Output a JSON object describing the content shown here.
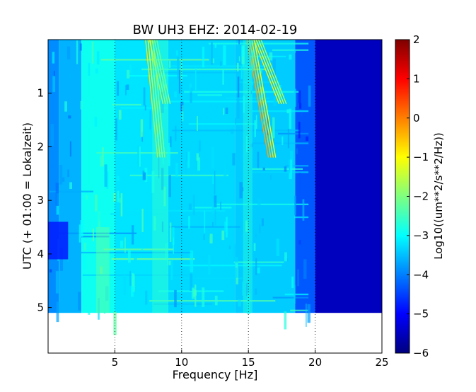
{
  "chart_data": {
    "type": "heatmap",
    "title": "BW UH3 EHZ: 2014-02-19",
    "xlabel": "Frequency [Hz]",
    "ylabel": "UTC (+ 01:00 = Lokalzeit)",
    "xlim": [
      0,
      25
    ],
    "ylim": [
      5.85,
      0
    ],
    "data_extent_y": [
      0,
      5.1
    ],
    "x_ticks": [
      5,
      10,
      15,
      20,
      25
    ],
    "x_tick_labels": [
      "5",
      "10",
      "15",
      "20",
      "25"
    ],
    "y_ticks": [
      1,
      2,
      3,
      4,
      5
    ],
    "y_tick_labels": [
      "1",
      "2",
      "3",
      "4",
      "5"
    ],
    "vertical_grid": "dotted at x ticks",
    "colorbar": {
      "label": "Log10((um**2/s**2/Hz))",
      "range": [
        -6,
        2
      ],
      "ticks": [
        2,
        1,
        0,
        -1,
        -2,
        -3,
        -4,
        -5,
        -6
      ],
      "tick_labels": [
        "2",
        "1",
        "0",
        "−1",
        "−2",
        "−3",
        "−4",
        "−5",
        "−6"
      ],
      "colormap": "jet",
      "colors": [
        "#00007f",
        "#0000ff",
        "#007fff",
        "#00ffff",
        "#7fff7f",
        "#ffff00",
        "#ff7f00",
        "#ff0000",
        "#7f0000"
      ]
    },
    "background_levels": [
      {
        "f_from": 0.0,
        "f_to": 0.8,
        "value": -3.9
      },
      {
        "f_from": 0.8,
        "f_to": 2.5,
        "value": -3.6
      },
      {
        "f_from": 2.5,
        "f_to": 5.0,
        "value": -2.9
      },
      {
        "f_from": 5.0,
        "f_to": 9.0,
        "value": -3.2
      },
      {
        "f_from": 9.0,
        "f_to": 14.0,
        "value": -3.3
      },
      {
        "f_from": 14.0,
        "f_to": 18.5,
        "value": -3.4
      },
      {
        "f_from": 18.5,
        "f_to": 20.0,
        "value": -4.3
      },
      {
        "f_from": 20.0,
        "f_to": 25.0,
        "value": -5.5
      }
    ],
    "features": [
      {
        "name": "low-frequency patch",
        "f_range": [
          0.0,
          1.5
        ],
        "t_range": [
          3.4,
          4.1
        ],
        "value": -4.8
      },
      {
        "name": "tremor line 1",
        "f_start": 7.3,
        "t_start": 0.0,
        "f_end": 8.2,
        "t_end": 2.2,
        "value": -0.8
      },
      {
        "name": "tremor line 2",
        "f_start": 7.6,
        "t_start": 0.0,
        "f_end": 8.6,
        "t_end": 1.2,
        "value": -1.0
      },
      {
        "name": "tremor line 3",
        "f_start": 14.9,
        "t_start": 0.0,
        "f_end": 16.5,
        "t_end": 2.2,
        "value": -0.3
      },
      {
        "name": "tremor line 4",
        "f_start": 15.4,
        "t_start": 0.0,
        "f_end": 17.3,
        "t_end": 1.2,
        "value": -0.9
      },
      {
        "name": "band 4 Hz",
        "f_range": [
          3.6,
          4.6
        ],
        "t_range": [
          3.5,
          5.1
        ],
        "value": -2.2
      },
      {
        "name": "band 8.5 Hz",
        "f_range": [
          7.8,
          9.0
        ],
        "t_range": [
          0.0,
          5.1
        ],
        "value": -2.6
      },
      {
        "name": "band 15 Hz",
        "f_range": [
          14.6,
          15.3
        ],
        "t_range": [
          0.0,
          5.1
        ],
        "value": -2.7
      }
    ]
  }
}
